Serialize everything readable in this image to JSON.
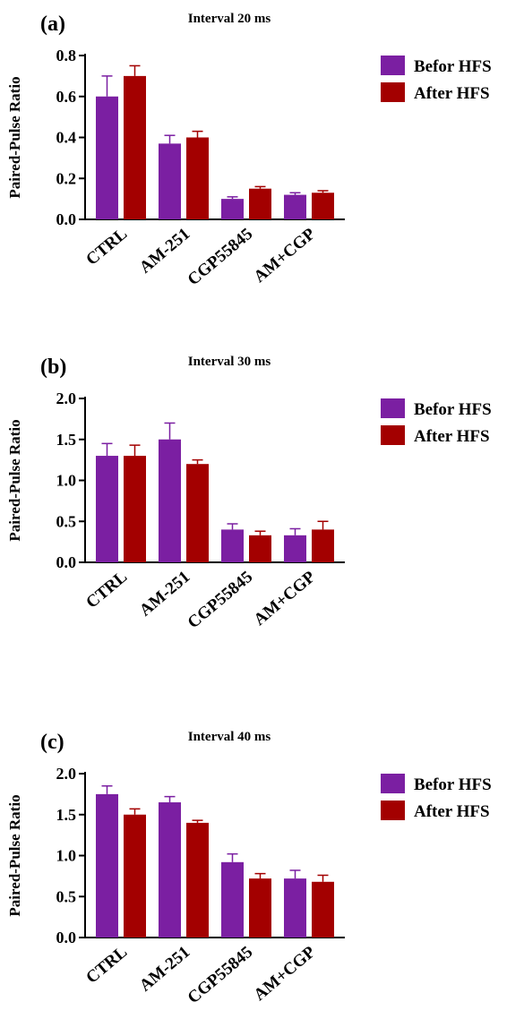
{
  "colors": {
    "before": "#7b1fa2",
    "after": "#a30000"
  },
  "chart_data": [
    {
      "type": "bar",
      "panel_label": "(a)",
      "title": "Interval 20 ms",
      "ylabel": "Paired-Pulse Ratio",
      "xlabel": "",
      "categories": [
        "CTRL",
        "AM-251",
        "CGP55845",
        "AM+CGP"
      ],
      "ylim": [
        0,
        0.8
      ],
      "yticks": [
        "0.0",
        "0.2",
        "0.4",
        "0.6",
        "0.8"
      ],
      "grid": false,
      "legend": "right",
      "series": [
        {
          "name": "Befor HFS",
          "values": [
            0.6,
            0.37,
            0.1,
            0.12
          ],
          "errors": [
            0.1,
            0.04,
            0.01,
            0.01
          ]
        },
        {
          "name": "After  HFS",
          "values": [
            0.7,
            0.4,
            0.15,
            0.13
          ],
          "errors": [
            0.05,
            0.03,
            0.01,
            0.01
          ]
        }
      ]
    },
    {
      "type": "bar",
      "panel_label": "(b)",
      "title": "Interval 30 ms",
      "ylabel": "Paired-Pulse Ratio",
      "xlabel": "",
      "categories": [
        "CTRL",
        "AM-251",
        "CGP55845",
        "AM+CGP"
      ],
      "ylim": [
        0,
        2.0
      ],
      "yticks": [
        "0.0",
        "0.5",
        "1.0",
        "1.5",
        "2.0"
      ],
      "grid": false,
      "legend": "right",
      "series": [
        {
          "name": "Befor HFS",
          "values": [
            1.3,
            1.5,
            0.4,
            0.33
          ],
          "errors": [
            0.15,
            0.2,
            0.07,
            0.08
          ]
        },
        {
          "name": "After  HFS",
          "values": [
            1.3,
            1.2,
            0.33,
            0.4
          ],
          "errors": [
            0.13,
            0.05,
            0.05,
            0.1
          ]
        }
      ]
    },
    {
      "type": "bar",
      "panel_label": "(c)",
      "title": "Interval 40 ms",
      "ylabel": "Paired-Pulse Ratio",
      "xlabel": "",
      "categories": [
        "CTRL",
        "AM-251",
        "CGP55845",
        "AM+CGP"
      ],
      "ylim": [
        0,
        2.0
      ],
      "yticks": [
        "0.0",
        "0.5",
        "1.0",
        "1.5",
        "2.0"
      ],
      "grid": false,
      "legend": "right",
      "series": [
        {
          "name": "Befor HFS",
          "values": [
            1.75,
            1.65,
            0.92,
            0.72
          ],
          "errors": [
            0.1,
            0.07,
            0.1,
            0.1
          ]
        },
        {
          "name": "After  HFS",
          "values": [
            1.5,
            1.4,
            0.72,
            0.68
          ],
          "errors": [
            0.07,
            0.03,
            0.06,
            0.08
          ]
        }
      ]
    }
  ]
}
